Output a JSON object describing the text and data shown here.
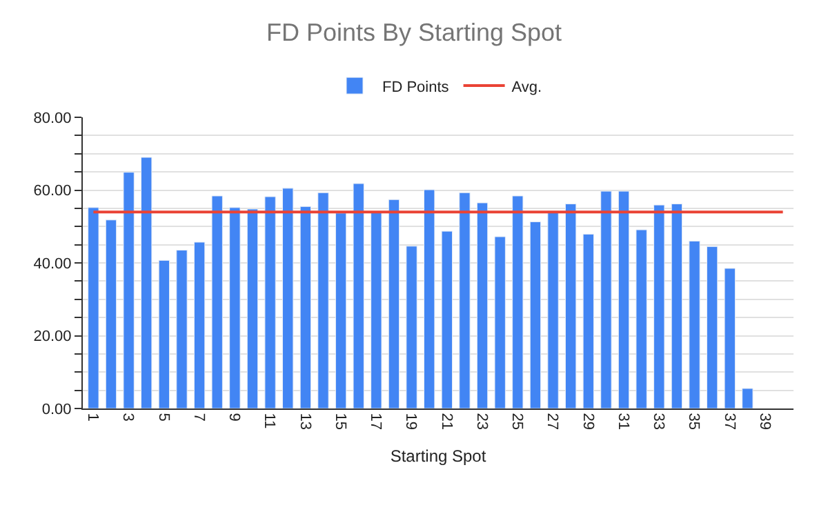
{
  "chart_data": {
    "type": "bar",
    "title": "FD Points By Starting Spot",
    "xlabel": "Starting Spot",
    "categories": [
      "1",
      null,
      "3",
      null,
      "5",
      null,
      "7",
      null,
      "9",
      null,
      "11",
      null,
      "13",
      null,
      "15",
      null,
      "17",
      null,
      "19",
      null,
      "21",
      null,
      "23",
      null,
      "25",
      null,
      "27",
      null,
      "29",
      null,
      "31",
      null,
      "33",
      null,
      "35",
      null,
      "37",
      null,
      "39",
      null
    ],
    "series": [
      {
        "name": "FD Points",
        "color": "#4285f4",
        "values": [
          55.2,
          51.8,
          64.9,
          69.0,
          40.7,
          43.5,
          45.7,
          58.4,
          55.2,
          54.8,
          58.2,
          60.5,
          55.5,
          59.3,
          53.7,
          61.8,
          54.0,
          57.4,
          44.6,
          60.1,
          48.7,
          59.3,
          56.5,
          47.2,
          58.4,
          51.3,
          54.3,
          56.2,
          47.9,
          59.7,
          59.7,
          49.1,
          55.9,
          56.2,
          46.0,
          44.5,
          38.5,
          5.5,
          null,
          null
        ]
      },
      {
        "name": "Avg.",
        "type": "line",
        "color": "#ea4335",
        "values": [
          54.0,
          54.0,
          54.0,
          54.0,
          54.0,
          54.0,
          54.0,
          54.0,
          54.0,
          54.0,
          54.0,
          54.0,
          54.0,
          54.0,
          54.0,
          54.0,
          54.0,
          54.0,
          54.0,
          54.0,
          54.0,
          54.0,
          54.0,
          54.0,
          54.0,
          54.0,
          54.0,
          54.0,
          54.0,
          54.0,
          54.0,
          54.0,
          54.0,
          54.0,
          54.0,
          54.0,
          54.0,
          54.0,
          54.0,
          54.0
        ]
      }
    ],
    "ylim": [
      0,
      80
    ],
    "yticks": [
      "0.00",
      {
        "value": 5,
        "label": null
      },
      {
        "value": 10,
        "label": null
      },
      {
        "value": 15,
        "label": null
      },
      {
        "value": 20,
        "label": "20.00"
      },
      {
        "value": 25,
        "label": null
      },
      {
        "value": 30,
        "label": null
      },
      {
        "value": 35,
        "label": null
      },
      {
        "value": 40,
        "label": "40.00"
      },
      {
        "value": 45,
        "label": null
      },
      {
        "value": 50,
        "label": null
      },
      {
        "value": 55,
        "label": null
      },
      {
        "value": 60,
        "label": "60.00"
      },
      {
        "value": 65,
        "label": null
      },
      {
        "value": 70,
        "label": null
      },
      {
        "value": 75,
        "label": null
      },
      {
        "value": 80,
        "label": "80.00"
      }
    ],
    "grid": "y",
    "legend": "top",
    "marker": "none",
    "line_style": "solid"
  }
}
